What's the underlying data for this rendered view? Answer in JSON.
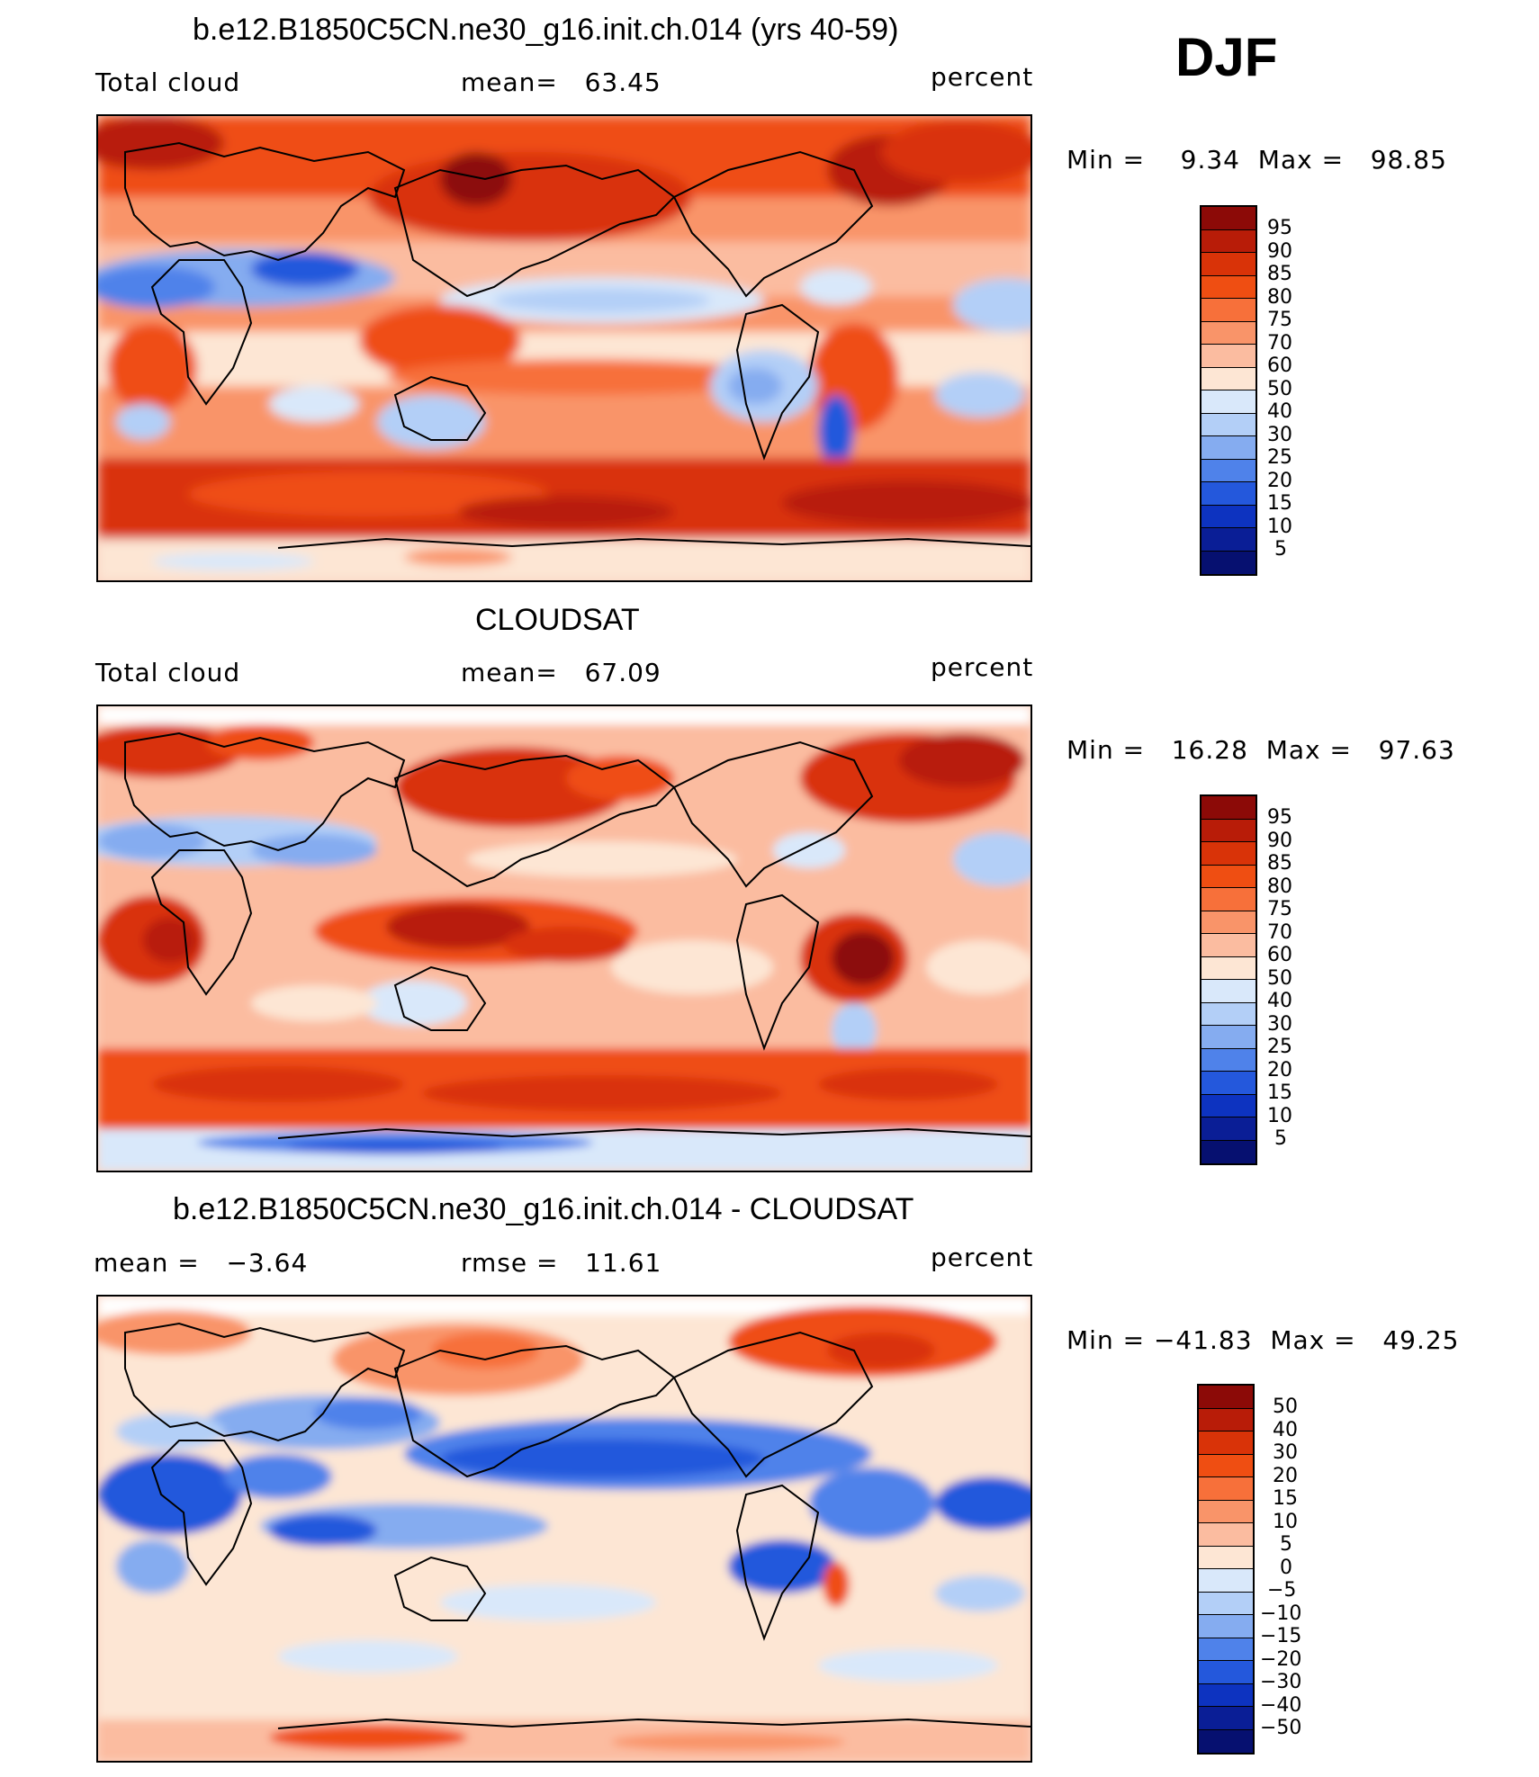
{
  "season": "DJF",
  "panels": [
    {
      "title": "b.e12.B1850C5CN.ne30_g16.init.ch.014 (yrs 40-59)",
      "left_label": "Total cloud",
      "center_label": "mean=   63.45",
      "right_label": "percent",
      "minmax": "Min =    9.34  Max =   98.85",
      "map_name": "model-total-cloud-map"
    },
    {
      "title": "CLOUDSAT",
      "left_label": "Total cloud",
      "center_label": "mean=   67.09",
      "right_label": "percent",
      "minmax": "Min =   16.28  Max =   97.63",
      "map_name": "cloudsat-total-cloud-map"
    },
    {
      "title": "b.e12.B1850C5CN.ne30_g16.init.ch.014 - CLOUDSAT",
      "left_label": "mean =   −3.64",
      "center_label": "rmse =   11.61",
      "right_label": "percent",
      "minmax": "Min = −41.83  Max =   49.25",
      "map_name": "difference-map"
    }
  ],
  "chart_data": [
    {
      "type": "heatmap",
      "title": "b.e12.B1850C5CN.ne30_g16.init.ch.014 (yrs 40-59)",
      "variable": "Total cloud",
      "units": "percent",
      "mean": 63.45,
      "min": 9.34,
      "max": 98.85,
      "colorbar_levels": [
        "95",
        "90",
        "85",
        "80",
        "75",
        "70",
        "60",
        "50",
        "40",
        "30",
        "25",
        "20",
        "15",
        "10",
        "5"
      ]
    },
    {
      "type": "heatmap",
      "title": "CLOUDSAT",
      "variable": "Total cloud",
      "units": "percent",
      "mean": 67.09,
      "min": 16.28,
      "max": 97.63,
      "colorbar_levels": [
        "95",
        "90",
        "85",
        "80",
        "75",
        "70",
        "60",
        "50",
        "40",
        "30",
        "25",
        "20",
        "15",
        "10",
        "5"
      ]
    },
    {
      "type": "heatmap",
      "title": "b.e12.B1850C5CN.ne30_g16.init.ch.014 - CLOUDSAT",
      "units": "percent",
      "mean": -3.64,
      "rmse": 11.61,
      "min": -41.83,
      "max": 49.25,
      "colorbar_levels": [
        "50",
        "40",
        "30",
        "20",
        "15",
        "10",
        "5",
        "0",
        "−5",
        "−10",
        "−15",
        "−20",
        "−30",
        "−40",
        "−50"
      ]
    }
  ],
  "colors": {
    "cbar": [
      "#8c0a07",
      "#b81c08",
      "#d93308",
      "#ef4e12",
      "#f7703a",
      "#f99469",
      "#fbbca0",
      "#fde6d4",
      "#d9e8fa",
      "#b3cff7",
      "#85acf0",
      "#4f82ea",
      "#2458dc",
      "#0d33c0",
      "#0a1e96",
      "#061070"
    ]
  }
}
